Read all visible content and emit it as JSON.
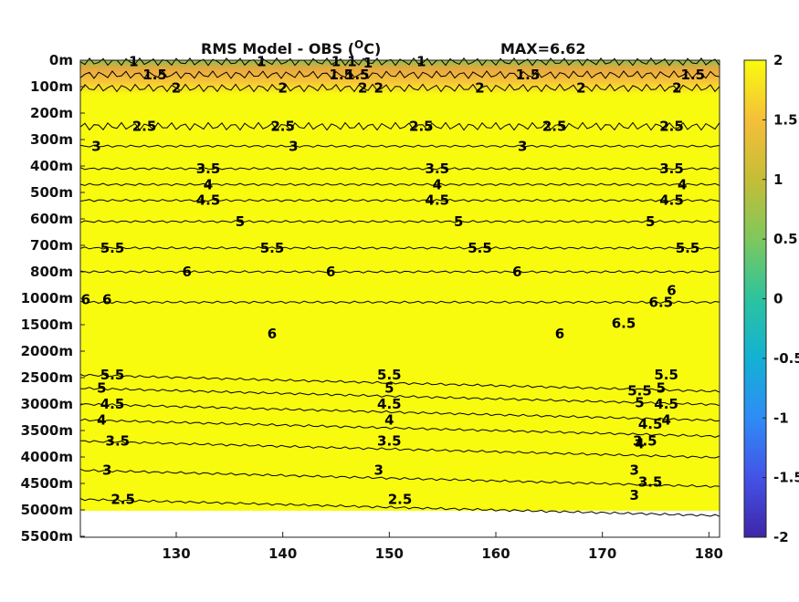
{
  "chart_data": {
    "type": "heatmap",
    "title": "RMS Model - OBS (",
    "title_unit_sup": "O",
    "title_unit_end": "C)",
    "annotation": "MAX=6.62",
    "x_ticks": [
      "130",
      "140",
      "150",
      "160",
      "170",
      "180"
    ],
    "x_tick_values": [
      130,
      140,
      150,
      160,
      170,
      180
    ],
    "xlim": [
      121,
      181
    ],
    "y_ticks": [
      "0m",
      "100m",
      "200m",
      "300m",
      "400m",
      "500m",
      "600m",
      "700m",
      "800m",
      "1000m",
      "1500m",
      "2000m",
      "2500m",
      "3000m",
      "3500m",
      "4000m",
      "4500m",
      "5000m",
      "5500m"
    ],
    "colorbar": {
      "ticks": [
        "2",
        "1.5",
        "1",
        "0.5",
        "0",
        "-0.5",
        "-1",
        "-1.5",
        "-2"
      ],
      "range": [
        -2,
        2
      ],
      "colors": [
        "#3e26a8",
        "#4353e6",
        "#2f8cf6",
        "#13b1d4",
        "#2cc39e",
        "#7ec85c",
        "#c5bd37",
        "#f5bf3a",
        "#f9fb0e"
      ]
    },
    "field_colors": {
      "saturated": "#f9fb0e",
      "c1_5": "#f0b43c",
      "c1_0": "#8fbd4a",
      "no_data": "#ffffff"
    },
    "contours": [
      {
        "level": "1",
        "row": 0.06,
        "x": [
          126,
          138,
          145,
          146.5,
          153
        ]
      },
      {
        "level": "1.5",
        "row": 0.55,
        "x": [
          128,
          145.5,
          163,
          178.5
        ]
      },
      {
        "level": "2",
        "row": 1.05,
        "x": [
          130,
          140,
          147.5,
          149,
          158.5,
          168,
          177
        ]
      },
      {
        "level": "2.5",
        "row": 2.5,
        "x": [
          127,
          140,
          153,
          165.5,
          176.5
        ]
      },
      {
        "level": "3",
        "row": 3.25,
        "x": [
          122.5,
          141,
          162.5
        ]
      },
      {
        "level": "3.5",
        "row": 4.1,
        "x": [
          133,
          154.5,
          176.5
        ]
      },
      {
        "level": "4",
        "row": 4.7,
        "x": [
          133,
          154.5,
          177.5
        ]
      },
      {
        "level": "4.5",
        "row": 5.3,
        "x": [
          133,
          154.5,
          176.5
        ]
      },
      {
        "level": "5",
        "row": 6.1,
        "x": [
          136,
          156.5,
          174.5
        ]
      },
      {
        "level": "5.5",
        "row": 7.1,
        "x": [
          124,
          139,
          158.5,
          178
        ]
      },
      {
        "level": "6",
        "row": 8.0,
        "x": [
          131,
          144.5,
          162
        ]
      },
      {
        "level": "6.5",
        "row": 9.15,
        "x": [
          175.5
        ]
      },
      {
        "level": "5.5",
        "row": 11.9,
        "x": [
          124,
          150,
          176
        ]
      },
      {
        "level": "5",
        "row": 12.4,
        "x": [
          123,
          150,
          175.5
        ]
      },
      {
        "level": "4.5",
        "row": 13.0,
        "x": [
          124,
          150,
          176
        ]
      },
      {
        "level": "4",
        "row": 13.6,
        "x": [
          123,
          150,
          176
        ]
      },
      {
        "level": "3.5",
        "row": 14.4,
        "x": [
          124.5,
          150,
          174
        ]
      },
      {
        "level": "3",
        "row": 15.5,
        "x": [
          123.5,
          149,
          173
        ]
      },
      {
        "level": "2.5",
        "row": 16.6,
        "x": [
          125,
          151
        ]
      }
    ],
    "extra_labels": [
      {
        "level": "1",
        "row": 0.1,
        "x": [
          148
        ]
      },
      {
        "level": "1.5",
        "row": 0.55,
        "x": [
          147
        ]
      },
      {
        "level": "6",
        "row": 10.35,
        "x": [
          139,
          166
        ]
      },
      {
        "level": "6",
        "row": 9.05,
        "x": [
          121.5,
          123.5
        ]
      },
      {
        "level": "6",
        "row": 8.7,
        "x": [
          176.5
        ]
      },
      {
        "level": "6.5",
        "row": 9.95,
        "x": [
          172
        ]
      },
      {
        "level": "3",
        "row": 16.45,
        "x": [
          173
        ]
      },
      {
        "level": "3.5",
        "row": 15.95,
        "x": [
          174.5
        ]
      },
      {
        "level": "4",
        "row": 14.5,
        "x": [
          173.5
        ]
      },
      {
        "level": "4.5",
        "row": 13.75,
        "x": [
          174.5
        ]
      },
      {
        "level": "5",
        "row": 12.95,
        "x": [
          173.5
        ]
      },
      {
        "level": "5.5",
        "row": 12.5,
        "x": [
          173.5
        ]
      }
    ]
  }
}
